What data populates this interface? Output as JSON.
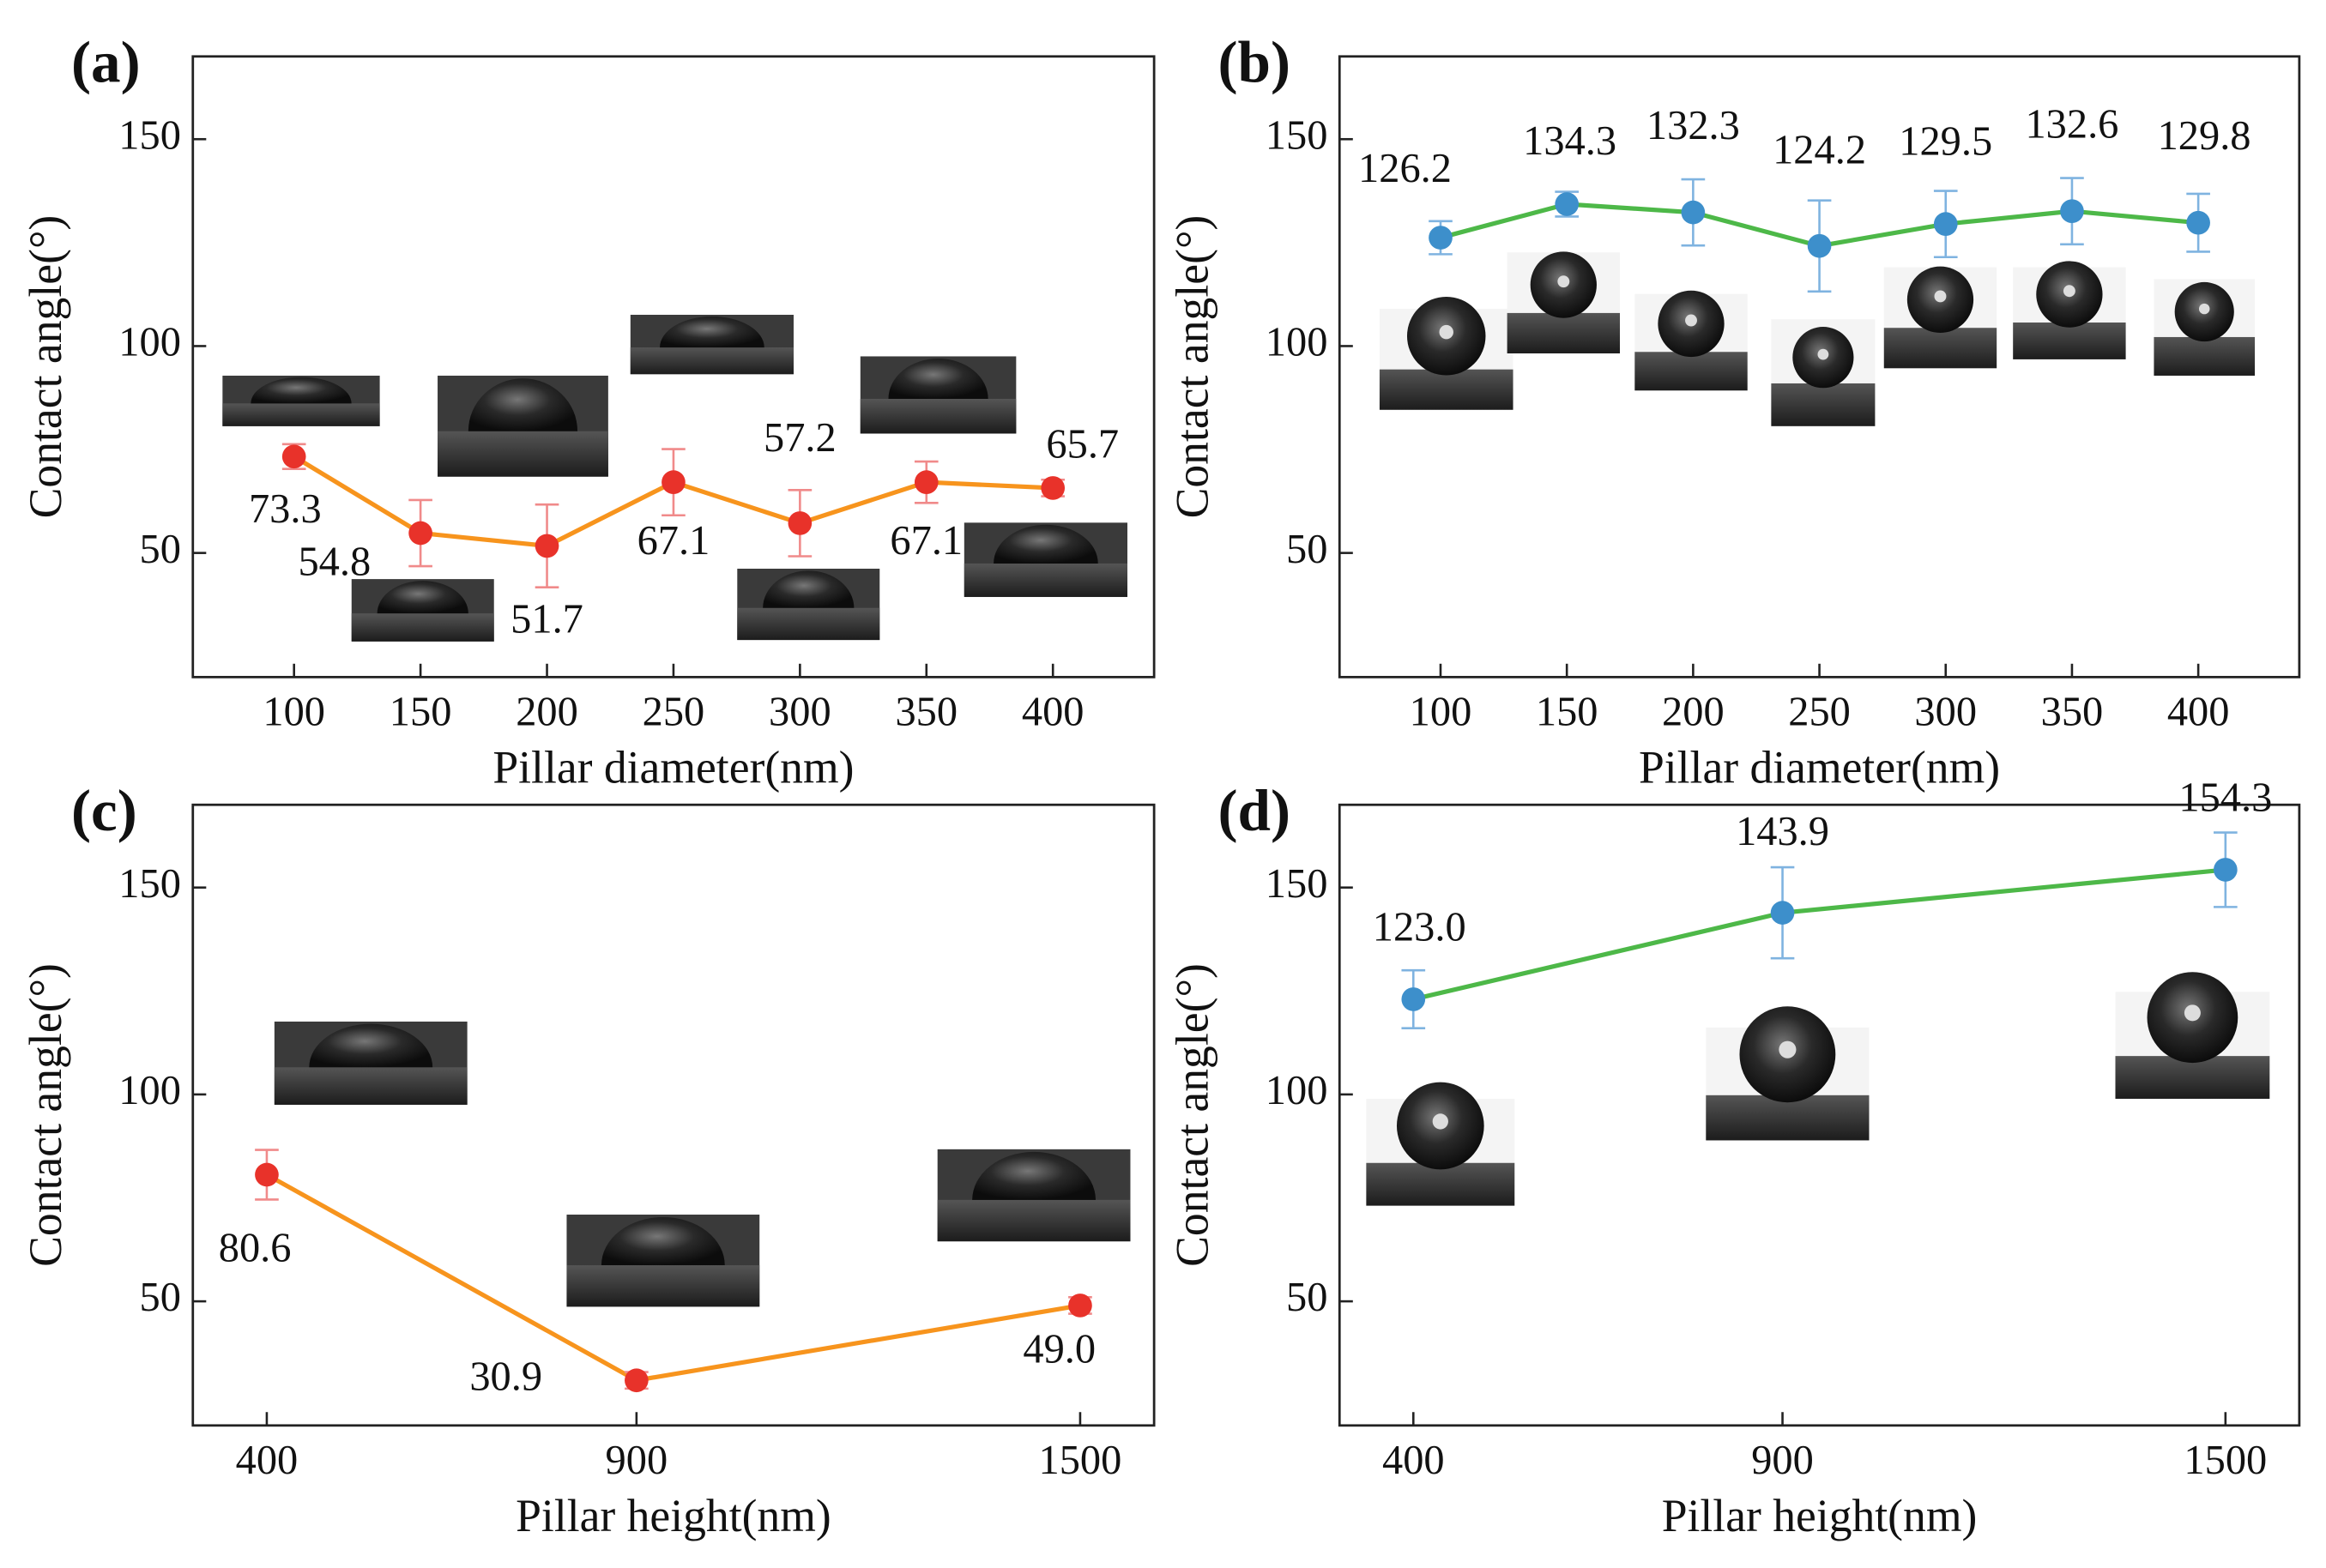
{
  "chart_data": [
    {
      "type": "line",
      "panel_label": "(a)",
      "xlabel": "Pillar diameter(nm)",
      "ylabel": "Contact angle(°)",
      "x": [
        100,
        150,
        200,
        250,
        300,
        350,
        400
      ],
      "values": [
        73.3,
        54.8,
        51.7,
        67.1,
        57.2,
        67.1,
        65.7
      ],
      "errors": [
        3,
        8,
        10,
        8,
        8,
        5,
        2
      ],
      "value_labels": [
        "73.3",
        "54.8",
        "51.7",
        "67.1",
        "57.2",
        "67.1",
        "65.7"
      ],
      "line_color": "#f7941d",
      "marker_color": "#e8322a",
      "error_color": "#f08a8a",
      "xlim": [
        60,
        440
      ],
      "xticks": [
        100,
        150,
        200,
        250,
        300,
        350,
        400
      ],
      "ylim": [
        20,
        170
      ],
      "yticks": [
        50,
        100,
        150
      ]
    },
    {
      "type": "line",
      "panel_label": "(b)",
      "xlabel": "Pillar diameter(nm)",
      "ylabel": "Contact angle(°)",
      "x": [
        100,
        150,
        200,
        250,
        300,
        350,
        400
      ],
      "values": [
        126.2,
        134.3,
        132.3,
        124.2,
        129.5,
        132.6,
        129.8
      ],
      "errors": [
        4,
        3,
        8,
        11,
        8,
        8,
        7
      ],
      "value_labels": [
        "126.2",
        "134.3",
        "132.3",
        "124.2",
        "129.5",
        "132.6",
        "129.8"
      ],
      "line_color": "#4db848",
      "marker_color": "#3d8fcb",
      "error_color": "#7fb3e0",
      "xlim": [
        60,
        440
      ],
      "xticks": [
        100,
        150,
        200,
        250,
        300,
        350,
        400
      ],
      "ylim": [
        20,
        170
      ],
      "yticks": [
        50,
        100,
        150
      ]
    },
    {
      "type": "line",
      "panel_label": "(c)",
      "xlabel": "Pillar height(nm)",
      "ylabel": "Contact angle(°)",
      "x": [
        400,
        900,
        1500
      ],
      "values": [
        80.6,
        30.9,
        49.0
      ],
      "errors": [
        6,
        2,
        2
      ],
      "value_labels": [
        "80.6",
        "30.9",
        "49.0"
      ],
      "line_color": "#f7941d",
      "marker_color": "#e8322a",
      "error_color": "#f08a8a",
      "xlim": [
        300,
        1600
      ],
      "xticks": [
        400,
        900,
        1500
      ],
      "ylim": [
        20,
        170
      ],
      "yticks": [
        50,
        100,
        150
      ]
    },
    {
      "type": "line",
      "panel_label": "(d)",
      "xlabel": "Pillar height(nm)",
      "ylabel": "Contact angle(°)",
      "x": [
        400,
        900,
        1500
      ],
      "values": [
        123.0,
        143.9,
        154.3
      ],
      "errors": [
        7,
        11,
        9
      ],
      "value_labels": [
        "123.0",
        "143.9",
        "154.3"
      ],
      "line_color": "#4db848",
      "marker_color": "#3d8fcb",
      "error_color": "#7fb3e0",
      "xlim": [
        300,
        1600
      ],
      "xticks": [
        400,
        900,
        1500
      ],
      "ylim": [
        20,
        170
      ],
      "yticks": [
        50,
        100,
        150
      ]
    }
  ]
}
